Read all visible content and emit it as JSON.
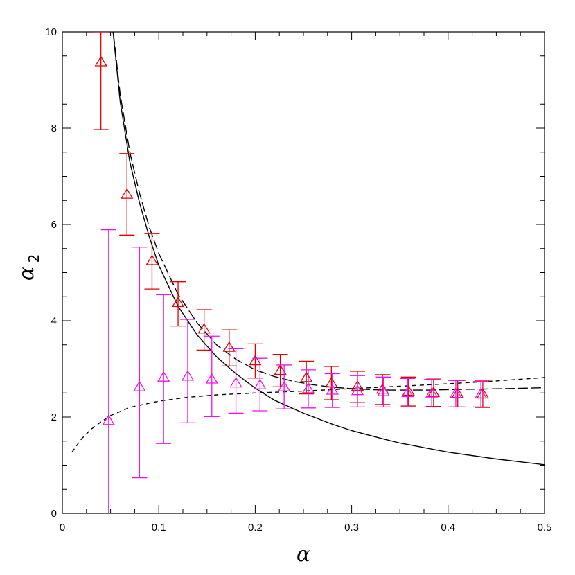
{
  "chart_data": {
    "type": "scatter",
    "xlabel": "α",
    "ylabel": "α",
    "ylabel_subscript": "2",
    "xlim": [
      0,
      0.5
    ],
    "ylim": [
      0,
      10
    ],
    "xticks": [
      0,
      0.1,
      0.2,
      0.3,
      0.4,
      0.5
    ],
    "yticks": [
      0,
      2,
      4,
      6,
      8,
      10
    ],
    "xtick_labels": [
      "0",
      "0.1",
      "0.2",
      "0.3",
      "0.4",
      "0.5"
    ],
    "ytick_labels": [
      "0",
      "2",
      "4",
      "6",
      "8",
      "10"
    ],
    "grid": false,
    "series": [
      {
        "color": "#e00000",
        "marker": "triangle-open",
        "points": [
          {
            "x": 0.04,
            "y": 9.37,
            "ylo": 7.97,
            "yhi": 10.0
          },
          {
            "x": 0.067,
            "y": 6.62,
            "ylo": 5.78,
            "yhi": 7.47
          },
          {
            "x": 0.093,
            "y": 5.24,
            "ylo": 4.66,
            "yhi": 5.81
          },
          {
            "x": 0.12,
            "y": 4.37,
            "ylo": 3.89,
            "yhi": 4.81
          },
          {
            "x": 0.147,
            "y": 3.82,
            "ylo": 3.39,
            "yhi": 4.23
          },
          {
            "x": 0.173,
            "y": 3.44,
            "ylo": 3.06,
            "yhi": 3.81
          },
          {
            "x": 0.2,
            "y": 3.16,
            "ylo": 2.81,
            "yhi": 3.52
          },
          {
            "x": 0.226,
            "y": 2.96,
            "ylo": 2.63,
            "yhi": 3.3
          },
          {
            "x": 0.253,
            "y": 2.81,
            "ylo": 2.48,
            "yhi": 3.16
          },
          {
            "x": 0.279,
            "y": 2.7,
            "ylo": 2.36,
            "yhi": 3.05
          },
          {
            "x": 0.306,
            "y": 2.63,
            "ylo": 2.3,
            "yhi": 2.95
          },
          {
            "x": 0.332,
            "y": 2.57,
            "ylo": 2.26,
            "yhi": 2.88
          },
          {
            "x": 0.359,
            "y": 2.53,
            "ylo": 2.23,
            "yhi": 2.83
          },
          {
            "x": 0.385,
            "y": 2.5,
            "ylo": 2.22,
            "yhi": 2.79
          },
          {
            "x": 0.41,
            "y": 2.48,
            "ylo": 2.21,
            "yhi": 2.76
          },
          {
            "x": 0.436,
            "y": 2.47,
            "ylo": 2.2,
            "yhi": 2.75
          }
        ]
      },
      {
        "color": "#ee10ee",
        "marker": "triangle-open",
        "points": [
          {
            "x": 0.048,
            "y": 1.92,
            "ylo": 0.0,
            "yhi": 5.89
          },
          {
            "x": 0.08,
            "y": 2.62,
            "ylo": 0.74,
            "yhi": 5.53
          },
          {
            "x": 0.105,
            "y": 2.82,
            "ylo": 1.45,
            "yhi": 4.54
          },
          {
            "x": 0.13,
            "y": 2.84,
            "ylo": 1.88,
            "yhi": 4.03
          },
          {
            "x": 0.155,
            "y": 2.78,
            "ylo": 2.01,
            "yhi": 3.68
          },
          {
            "x": 0.18,
            "y": 2.7,
            "ylo": 2.08,
            "yhi": 3.42
          },
          {
            "x": 0.205,
            "y": 2.66,
            "ylo": 2.13,
            "yhi": 3.22
          },
          {
            "x": 0.23,
            "y": 2.62,
            "ylo": 2.17,
            "yhi": 3.08
          },
          {
            "x": 0.255,
            "y": 2.58,
            "ylo": 2.19,
            "yhi": 2.98
          },
          {
            "x": 0.28,
            "y": 2.55,
            "ylo": 2.2,
            "yhi": 2.9
          },
          {
            "x": 0.306,
            "y": 2.54,
            "ylo": 2.21,
            "yhi": 2.86
          },
          {
            "x": 0.333,
            "y": 2.52,
            "ylo": 2.21,
            "yhi": 2.83
          },
          {
            "x": 0.358,
            "y": 2.5,
            "ylo": 2.21,
            "yhi": 2.8
          },
          {
            "x": 0.383,
            "y": 2.49,
            "ylo": 2.21,
            "yhi": 2.78
          },
          {
            "x": 0.408,
            "y": 2.48,
            "ylo": 2.21,
            "yhi": 2.76
          },
          {
            "x": 0.434,
            "y": 2.47,
            "ylo": 2.21,
            "yhi": 2.74
          }
        ]
      }
    ],
    "curves": [
      {
        "style": "solid",
        "color": "#000000",
        "points": [
          [
            0.05,
            10.5
          ],
          [
            0.06,
            8.55
          ],
          [
            0.07,
            7.3
          ],
          [
            0.08,
            6.45
          ],
          [
            0.09,
            5.75
          ],
          [
            0.1,
            5.15
          ],
          [
            0.12,
            4.3
          ],
          [
            0.14,
            3.7
          ],
          [
            0.16,
            3.25
          ],
          [
            0.18,
            2.9
          ],
          [
            0.2,
            2.6
          ],
          [
            0.22,
            2.35
          ],
          [
            0.25,
            2.08
          ],
          [
            0.28,
            1.85
          ],
          [
            0.3,
            1.72
          ],
          [
            0.33,
            1.56
          ],
          [
            0.35,
            1.46
          ],
          [
            0.4,
            1.27
          ],
          [
            0.45,
            1.13
          ],
          [
            0.5,
            1.01
          ]
        ]
      },
      {
        "style": "long-dash",
        "color": "#000000",
        "points": [
          [
            0.05,
            10.5
          ],
          [
            0.06,
            8.7
          ],
          [
            0.07,
            7.5
          ],
          [
            0.08,
            6.65
          ],
          [
            0.09,
            5.95
          ],
          [
            0.1,
            5.4
          ],
          [
            0.12,
            4.55
          ],
          [
            0.14,
            3.95
          ],
          [
            0.16,
            3.5
          ],
          [
            0.18,
            3.2
          ],
          [
            0.2,
            2.98
          ],
          [
            0.22,
            2.84
          ],
          [
            0.24,
            2.74
          ],
          [
            0.26,
            2.67
          ],
          [
            0.28,
            2.62
          ],
          [
            0.3,
            2.59
          ],
          [
            0.32,
            2.57
          ],
          [
            0.34,
            2.56
          ],
          [
            0.36,
            2.56
          ],
          [
            0.38,
            2.56
          ],
          [
            0.4,
            2.57
          ],
          [
            0.43,
            2.58
          ],
          [
            0.46,
            2.59
          ],
          [
            0.5,
            2.61
          ]
        ]
      },
      {
        "style": "short-dash",
        "color": "#000000",
        "points": [
          [
            0.01,
            1.27
          ],
          [
            0.02,
            1.55
          ],
          [
            0.03,
            1.75
          ],
          [
            0.04,
            1.9
          ],
          [
            0.05,
            2.03
          ],
          [
            0.07,
            2.2
          ],
          [
            0.1,
            2.33
          ],
          [
            0.13,
            2.41
          ],
          [
            0.16,
            2.46
          ],
          [
            0.2,
            2.5
          ],
          [
            0.25,
            2.54
          ],
          [
            0.3,
            2.59
          ],
          [
            0.35,
            2.64
          ],
          [
            0.4,
            2.69
          ],
          [
            0.45,
            2.75
          ],
          [
            0.5,
            2.82
          ]
        ]
      }
    ]
  }
}
